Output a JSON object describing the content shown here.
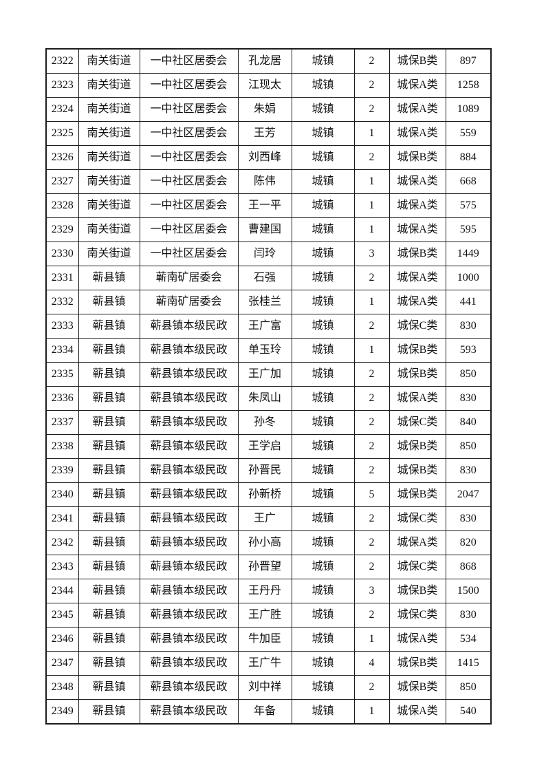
{
  "page": {
    "background_color": "#ffffff",
    "text_color": "#111111",
    "table_border_color": "#1c1c1c"
  },
  "table": {
    "rows": [
      [
        "2322",
        "南关街道",
        "一中社区居委会",
        "孔龙居",
        "城镇",
        "2",
        "城保B类",
        "897"
      ],
      [
        "2323",
        "南关街道",
        "一中社区居委会",
        "江现太",
        "城镇",
        "2",
        "城保A类",
        "1258"
      ],
      [
        "2324",
        "南关街道",
        "一中社区居委会",
        "朱娟",
        "城镇",
        "2",
        "城保A类",
        "1089"
      ],
      [
        "2325",
        "南关街道",
        "一中社区居委会",
        "王芳",
        "城镇",
        "1",
        "城保A类",
        "559"
      ],
      [
        "2326",
        "南关街道",
        "一中社区居委会",
        "刘西峰",
        "城镇",
        "2",
        "城保B类",
        "884"
      ],
      [
        "2327",
        "南关街道",
        "一中社区居委会",
        "陈伟",
        "城镇",
        "1",
        "城保A类",
        "668"
      ],
      [
        "2328",
        "南关街道",
        "一中社区居委会",
        "王一平",
        "城镇",
        "1",
        "城保A类",
        "575"
      ],
      [
        "2329",
        "南关街道",
        "一中社区居委会",
        "曹建国",
        "城镇",
        "1",
        "城保A类",
        "595"
      ],
      [
        "2330",
        "南关街道",
        "一中社区居委会",
        "闫玲",
        "城镇",
        "3",
        "城保B类",
        "1449"
      ],
      [
        "2331",
        "蕲县镇",
        "蕲南矿居委会",
        "石强",
        "城镇",
        "2",
        "城保A类",
        "1000"
      ],
      [
        "2332",
        "蕲县镇",
        "蕲南矿居委会",
        "张桂兰",
        "城镇",
        "1",
        "城保A类",
        "441"
      ],
      [
        "2333",
        "蕲县镇",
        "蕲县镇本级民政",
        "王广富",
        "城镇",
        "2",
        "城保C类",
        "830"
      ],
      [
        "2334",
        "蕲县镇",
        "蕲县镇本级民政",
        "单玉玲",
        "城镇",
        "1",
        "城保B类",
        "593"
      ],
      [
        "2335",
        "蕲县镇",
        "蕲县镇本级民政",
        "王广加",
        "城镇",
        "2",
        "城保B类",
        "850"
      ],
      [
        "2336",
        "蕲县镇",
        "蕲县镇本级民政",
        "朱凤山",
        "城镇",
        "2",
        "城保A类",
        "830"
      ],
      [
        "2337",
        "蕲县镇",
        "蕲县镇本级民政",
        "孙冬",
        "城镇",
        "2",
        "城保C类",
        "840"
      ],
      [
        "2338",
        "蕲县镇",
        "蕲县镇本级民政",
        "王学启",
        "城镇",
        "2",
        "城保B类",
        "850"
      ],
      [
        "2339",
        "蕲县镇",
        "蕲县镇本级民政",
        "孙晋民",
        "城镇",
        "2",
        "城保B类",
        "830"
      ],
      [
        "2340",
        "蕲县镇",
        "蕲县镇本级民政",
        "孙新桥",
        "城镇",
        "5",
        "城保B类",
        "2047"
      ],
      [
        "2341",
        "蕲县镇",
        "蕲县镇本级民政",
        "王广",
        "城镇",
        "2",
        "城保C类",
        "830"
      ],
      [
        "2342",
        "蕲县镇",
        "蕲县镇本级民政",
        "孙小高",
        "城镇",
        "2",
        "城保A类",
        "820"
      ],
      [
        "2343",
        "蕲县镇",
        "蕲县镇本级民政",
        "孙晋望",
        "城镇",
        "2",
        "城保C类",
        "868"
      ],
      [
        "2344",
        "蕲县镇",
        "蕲县镇本级民政",
        "王丹丹",
        "城镇",
        "3",
        "城保B类",
        "1500"
      ],
      [
        "2345",
        "蕲县镇",
        "蕲县镇本级民政",
        "王广胜",
        "城镇",
        "2",
        "城保C类",
        "830"
      ],
      [
        "2346",
        "蕲县镇",
        "蕲县镇本级民政",
        "牛加臣",
        "城镇",
        "1",
        "城保A类",
        "534"
      ],
      [
        "2347",
        "蕲县镇",
        "蕲县镇本级民政",
        "王广牛",
        "城镇",
        "4",
        "城保B类",
        "1415"
      ],
      [
        "2348",
        "蕲县镇",
        "蕲县镇本级民政",
        "刘中祥",
        "城镇",
        "2",
        "城保B类",
        "850"
      ],
      [
        "2349",
        "蕲县镇",
        "蕲县镇本级民政",
        "年备",
        "城镇",
        "1",
        "城保A类",
        "540"
      ]
    ]
  }
}
